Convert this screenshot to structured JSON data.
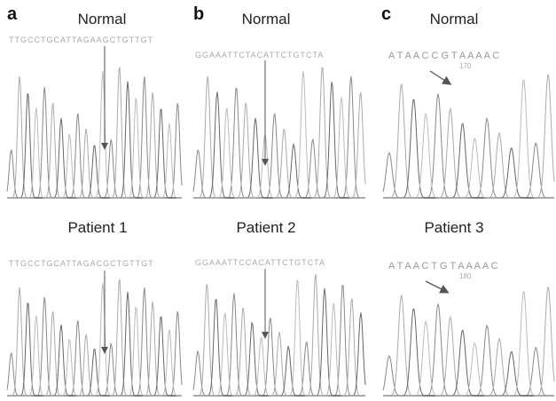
{
  "panels": [
    {
      "label": "a",
      "top": {
        "title": "Normal",
        "sequence": "TTGCCTGCATTAGAAGCTGTTGT"
      },
      "bottom": {
        "title": "Patient 1",
        "sequence": "TTGCCTGCATTAGACGCTGTTGT"
      }
    },
    {
      "label": "b",
      "top": {
        "title": "Normal",
        "sequence": "GGAAATTCTACATTCTGTCTA"
      },
      "bottom": {
        "title": "Patient 2",
        "sequence": "GGAAATTCCACATTCTGTCTA"
      }
    },
    {
      "label": "c",
      "top": {
        "title": "Normal",
        "sequence": "A T A A C C G T A A A A C",
        "position": "170"
      },
      "bottom": {
        "title": "Patient 3",
        "sequence": "A T A A C T G T A A A A C",
        "position": "180"
      }
    }
  ]
}
